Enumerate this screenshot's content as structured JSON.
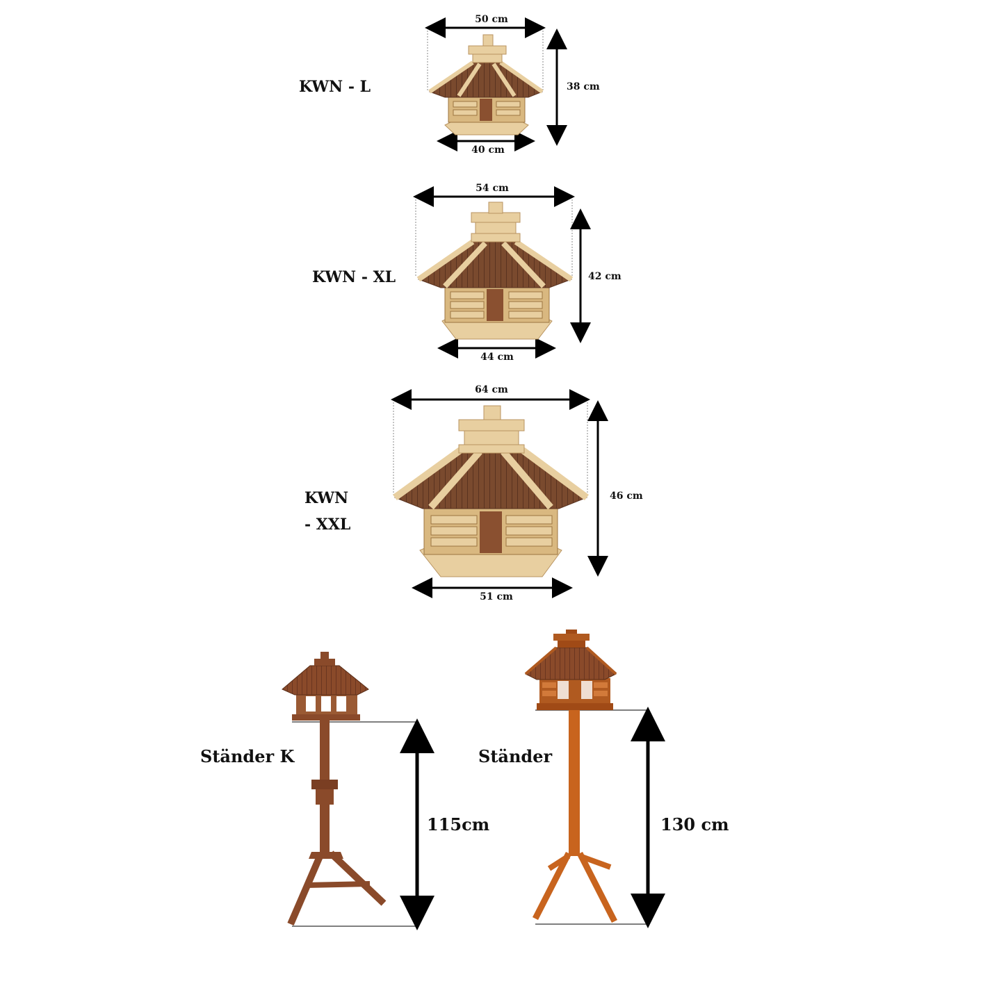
{
  "products": [
    {
      "name": "KWN - L",
      "width_top": "50 cm",
      "height": "38 cm",
      "width_bottom": "40 cm"
    },
    {
      "name": "KWN - XL",
      "width_top": "54 cm",
      "height": "42 cm",
      "width_bottom": "44 cm"
    },
    {
      "name_line1": "KWN",
      "name_line2": "- XXL",
      "width_top": "64 cm",
      "height": "46 cm",
      "width_bottom": "51 cm"
    }
  ],
  "stands": [
    {
      "name": "Ständer K",
      "height": "115cm"
    },
    {
      "name": "Ständer",
      "height": "130 cm"
    }
  ],
  "colors": {
    "roof_dark": "#7a4a2e",
    "wood_light": "#e8cfa0",
    "stand_k": "#8a4a2a",
    "stand": "#c8641e",
    "arrow": "#000000"
  }
}
